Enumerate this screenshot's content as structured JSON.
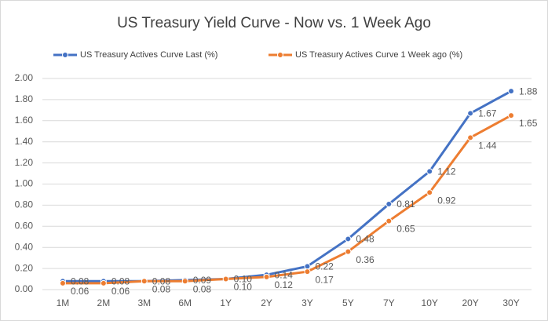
{
  "chart_data": {
    "type": "line",
    "title": "US Treasury Yield Curve - Now vs. 1 Week Ago",
    "categories": [
      "1M",
      "2M",
      "3M",
      "6M",
      "1Y",
      "2Y",
      "3Y",
      "5Y",
      "7Y",
      "10Y",
      "20Y",
      "30Y"
    ],
    "series": [
      {
        "name": "US Treasury Actives Curve Last (%)",
        "color": "#4472c4",
        "values": [
          0.08,
          0.08,
          0.08,
          0.09,
          0.1,
          0.14,
          0.22,
          0.48,
          0.81,
          1.12,
          1.67,
          1.88
        ],
        "value_labels": [
          "0.08",
          "0.08",
          "0.08",
          "0.09",
          "0.10",
          "0.14",
          "0.22",
          "0.48",
          "0.81",
          "1.12",
          "1.67",
          "1.88"
        ]
      },
      {
        "name": "US Treasury Actives Curve 1 Week ago (%)",
        "color": "#ed7d31",
        "values": [
          0.06,
          0.06,
          0.08,
          0.08,
          0.1,
          0.12,
          0.17,
          0.36,
          0.65,
          0.92,
          1.44,
          1.65
        ],
        "value_labels": [
          "0.06",
          "0.06",
          "0.08",
          "0.08",
          "0.10",
          "0.12",
          "0.17",
          "0.36",
          "0.65",
          "0.92",
          "1.44",
          "1.65"
        ]
      }
    ],
    "ylim": [
      0,
      2
    ],
    "yticks": [
      {
        "value": 0,
        "label": "0.00"
      },
      {
        "value": 0.2,
        "label": "0.20"
      },
      {
        "value": 0.4,
        "label": "0.40"
      },
      {
        "value": 0.6,
        "label": "0.60"
      },
      {
        "value": 0.8,
        "label": "0.80"
      },
      {
        "value": 1,
        "label": "1.00"
      },
      {
        "value": 1.2,
        "label": "1.20"
      },
      {
        "value": 1.4,
        "label": "1.40"
      },
      {
        "value": 1.6,
        "label": "1.60"
      },
      {
        "value": 1.8,
        "label": "1.80"
      },
      {
        "value": 2,
        "label": "2.00"
      }
    ],
    "grid": true,
    "legend": "top"
  }
}
